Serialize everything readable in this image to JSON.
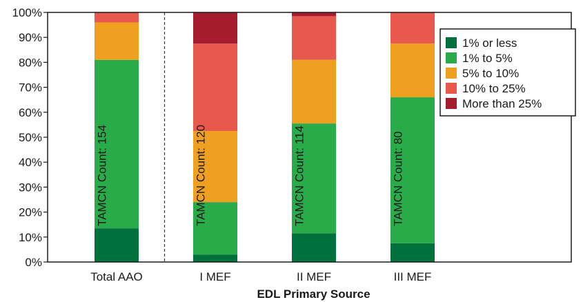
{
  "chart_data": {
    "type": "bar",
    "stacked": true,
    "percent_stacked": true,
    "title": "",
    "xlabel": "EDL Primary Source",
    "ylabel": "",
    "ylim": [
      0,
      100
    ],
    "y_ticks": [
      "0%",
      "10%",
      "20%",
      "30%",
      "40%",
      "50%",
      "60%",
      "70%",
      "80%",
      "90%",
      "100%"
    ],
    "grid": false,
    "legend_position": "top-right",
    "categories": [
      "Total AAO",
      "I MEF",
      "II MEF",
      "III MEF"
    ],
    "bar_annotations": [
      "TAMCN Count: 154",
      "TAMCN Count: 120",
      "TAMCN Count: 114",
      "TAMCN Count: 80"
    ],
    "separator_after_category": "Total AAO",
    "series": [
      {
        "name": "1% or less",
        "color": "#00703c",
        "values": [
          13.5,
          3,
          11.5,
          7.5
        ]
      },
      {
        "name": "1% to 5%",
        "color": "#2aab4a",
        "values": [
          67.5,
          21,
          44,
          58.5
        ]
      },
      {
        "name": "5% to 10%",
        "color": "#f0a020",
        "values": [
          15,
          28.5,
          25.5,
          21.5
        ]
      },
      {
        "name": "10% to 25%",
        "color": "#e8584c",
        "values": [
          4,
          35,
          17.5,
          12.5
        ]
      },
      {
        "name": "More than 25%",
        "color": "#a51c2e",
        "values": [
          0,
          12.5,
          1.5,
          0
        ]
      }
    ]
  }
}
